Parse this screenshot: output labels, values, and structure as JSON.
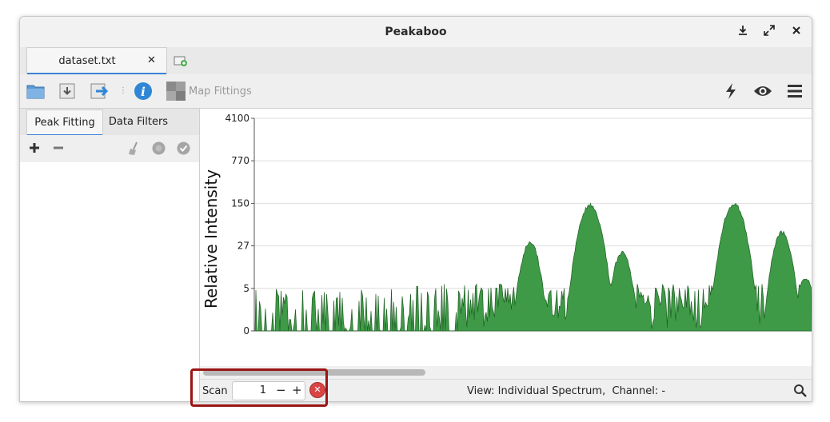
{
  "window": {
    "title": "Peakaboo"
  },
  "titlebar_icons": [
    "minimize-download-icon",
    "maximize-icon",
    "close-icon"
  ],
  "tabs": [
    {
      "label": "dataset.txt"
    }
  ],
  "toolbar": {
    "map_fittings_label": "Map Fittings"
  },
  "left_panel": {
    "tabs": [
      {
        "label": "Peak Fitting",
        "active": true
      },
      {
        "label": "Data Filters",
        "active": false
      }
    ]
  },
  "chart_data": {
    "type": "area",
    "ylabel": "Relative Intensity",
    "yscale": "log",
    "yticks": [
      "4100",
      "770",
      "150",
      "27",
      "5",
      "0"
    ],
    "color": "#3e9a46",
    "peaks": [
      {
        "x": 345,
        "height": 33
      },
      {
        "x": 420,
        "height": 150
      },
      {
        "x": 460,
        "height": 22
      },
      {
        "x": 600,
        "height": 160
      },
      {
        "x": 660,
        "height": 50
      },
      {
        "x": 690,
        "height": 8
      }
    ]
  },
  "status": {
    "scan_label": "Scan",
    "scan_value": "1",
    "view_text": "View: Individual Spectrum,  Channel: -"
  },
  "colors": {
    "accent": "#3b82d6",
    "highlight": "#9b1414",
    "spectrum": "#3e9a46"
  }
}
